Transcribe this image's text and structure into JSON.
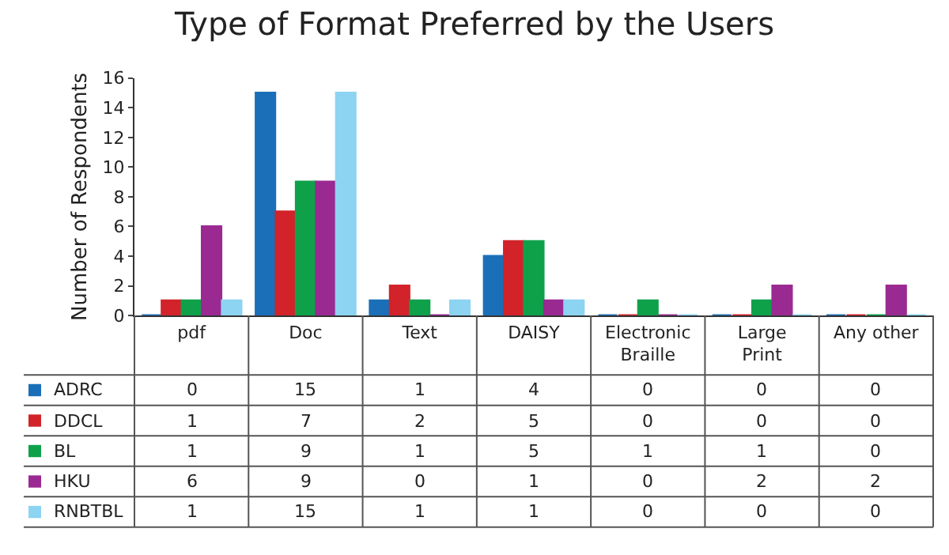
{
  "chart_data": {
    "type": "bar",
    "title": "Type of Format Preferred by the Users",
    "ylabel": "Number of Respondents",
    "categories": [
      "pdf",
      "Doc",
      "Text",
      "DAISY",
      "Electronic\nBraille",
      "Large\nPrint",
      "Any other"
    ],
    "series": [
      {
        "name": "ADRC",
        "color": "#1b6fb8",
        "values": [
          0,
          15,
          1,
          4,
          0,
          0,
          0
        ]
      },
      {
        "name": "DDCL",
        "color": "#d2232a",
        "values": [
          1,
          7,
          2,
          5,
          0,
          0,
          0
        ]
      },
      {
        "name": "BL",
        "color": "#0fa14a",
        "values": [
          1,
          9,
          1,
          5,
          1,
          1,
          0
        ]
      },
      {
        "name": "HKU",
        "color": "#9a2a92",
        "values": [
          6,
          9,
          0,
          1,
          0,
          2,
          2
        ]
      },
      {
        "name": "RNBTBL",
        "color": "#8dd3f2",
        "values": [
          1,
          15,
          1,
          1,
          0,
          0,
          0
        ]
      }
    ],
    "ylim": [
      0,
      16
    ],
    "yticks": [
      0,
      2,
      4,
      6,
      8,
      10,
      12,
      14,
      16
    ],
    "legend": "bottom",
    "data_labels": true
  }
}
